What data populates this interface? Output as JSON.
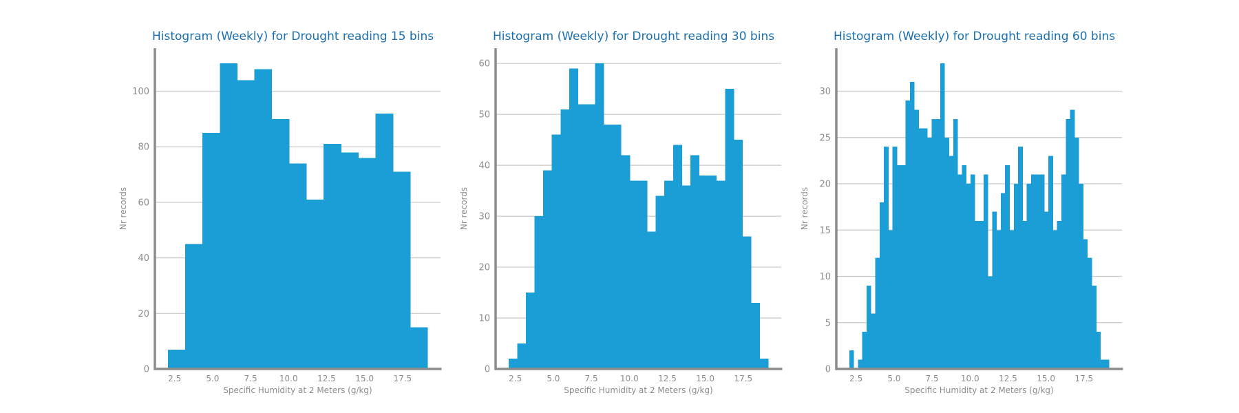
{
  "chart_data": [
    {
      "type": "bar",
      "title": "Histogram (Weekly) for Drought reading 15 bins",
      "xlabel": "Specific Humidity at 2 Meters (g/kg)",
      "ylabel": "Nr records",
      "xlim": [
        1.2,
        20.0
      ],
      "ylim": [
        0,
        115.5
      ],
      "xticks": [
        "2.5",
        "5.0",
        "7.5",
        "10.0",
        "12.5",
        "15.0",
        "17.5"
      ],
      "xtick_values": [
        2.5,
        5.0,
        7.5,
        10.0,
        12.5,
        15.0,
        17.5
      ],
      "yticks": [
        "0",
        "20",
        "40",
        "60",
        "80",
        "100"
      ],
      "ytick_values": [
        0,
        20,
        40,
        60,
        80,
        100
      ],
      "grid": "y",
      "bin_start": 2.05,
      "bin_width": 1.14,
      "values": [
        7,
        45,
        85,
        110,
        104,
        108,
        90,
        74,
        61,
        81,
        78,
        76,
        92,
        71,
        15
      ]
    },
    {
      "type": "bar",
      "title": "Histogram (Weekly) for Drought reading 30 bins",
      "xlabel": "Specific Humidity at 2 Meters (g/kg)",
      "ylabel": "Nr records",
      "xlim": [
        1.2,
        20.0
      ],
      "ylim": [
        0,
        63
      ],
      "xticks": [
        "2.5",
        "5.0",
        "7.5",
        "10.0",
        "12.5",
        "15.0",
        "17.5"
      ],
      "xtick_values": [
        2.5,
        5.0,
        7.5,
        10.0,
        12.5,
        15.0,
        17.5
      ],
      "yticks": [
        "0",
        "10",
        "20",
        "30",
        "40",
        "50",
        "60"
      ],
      "ytick_values": [
        0,
        10,
        20,
        30,
        40,
        50,
        60
      ],
      "grid": "y",
      "bin_start": 2.05,
      "bin_width": 0.57,
      "values": [
        2,
        5,
        15,
        30,
        39,
        46,
        51,
        59,
        52,
        52,
        60,
        48,
        48,
        42,
        37,
        37,
        27,
        34,
        37,
        44,
        36,
        42,
        38,
        38,
        37,
        55,
        45,
        26,
        13,
        2
      ]
    },
    {
      "type": "bar",
      "title": "Histogram (Weekly) for Drought reading 60 bins",
      "xlabel": "Specific Humidity at 2 Meters (g/kg)",
      "ylabel": "Nr records",
      "xlim": [
        1.2,
        20.0
      ],
      "ylim": [
        0,
        34.65
      ],
      "xticks": [
        "2.5",
        "5.0",
        "7.5",
        "10.0",
        "12.5",
        "15.0",
        "17.5"
      ],
      "xtick_values": [
        2.5,
        5.0,
        7.5,
        10.0,
        12.5,
        15.0,
        17.5
      ],
      "yticks": [
        "0",
        "5",
        "10",
        "15",
        "20",
        "25",
        "30"
      ],
      "ytick_values": [
        0,
        5,
        10,
        15,
        20,
        25,
        30
      ],
      "grid": "y",
      "bin_start": 2.05,
      "bin_width": 0.285,
      "values": [
        2,
        0,
        1,
        4,
        9,
        6,
        12,
        18,
        24,
        15,
        24,
        22,
        22,
        29,
        31,
        28,
        26,
        26,
        25,
        27,
        27,
        33,
        25,
        23,
        27,
        21,
        22,
        20,
        21,
        16,
        16,
        21,
        10,
        17,
        15,
        19,
        22,
        15,
        20,
        24,
        16,
        20,
        21,
        21,
        21,
        17,
        23,
        15,
        16,
        21,
        27,
        28,
        25,
        20,
        14,
        12,
        9,
        4,
        1,
        1
      ]
    }
  ],
  "colors": {
    "bar": "#1b9ed6",
    "title": "#1a6faf",
    "axis": "#8c8c8c",
    "grid": "#c8c8c8",
    "tick_label": "#8c8c8c"
  }
}
